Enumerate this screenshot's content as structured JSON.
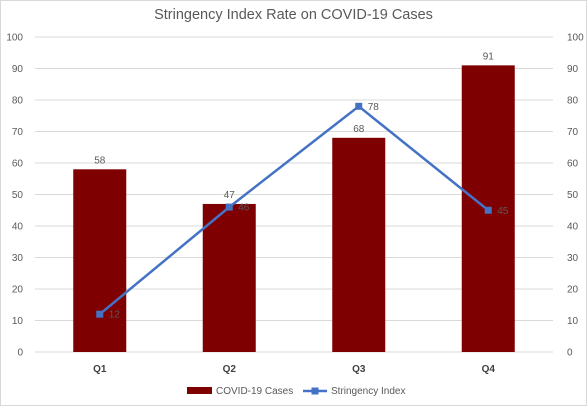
{
  "chart_data": {
    "type": "bar",
    "title": "Stringency Index Rate on COVID-19 Cases",
    "categories": [
      "Q1",
      "Q2",
      "Q3",
      "Q4"
    ],
    "series": [
      {
        "name": "COVID-19 Cases",
        "type": "bar",
        "axis": "left",
        "color": "#7f0000",
        "values": [
          58,
          47,
          68,
          91
        ]
      },
      {
        "name": "Stringency Index",
        "type": "line",
        "axis": "right",
        "color": "#4472c4",
        "values": [
          12,
          46,
          78,
          45
        ]
      }
    ],
    "ylim": [
      0,
      100
    ],
    "y2lim": [
      0,
      100
    ],
    "yticks": [
      "0",
      "10",
      "20",
      "30",
      "40",
      "50",
      "60",
      "70",
      "80",
      "90",
      "100"
    ],
    "grid": true,
    "legend_position": "bottom"
  }
}
